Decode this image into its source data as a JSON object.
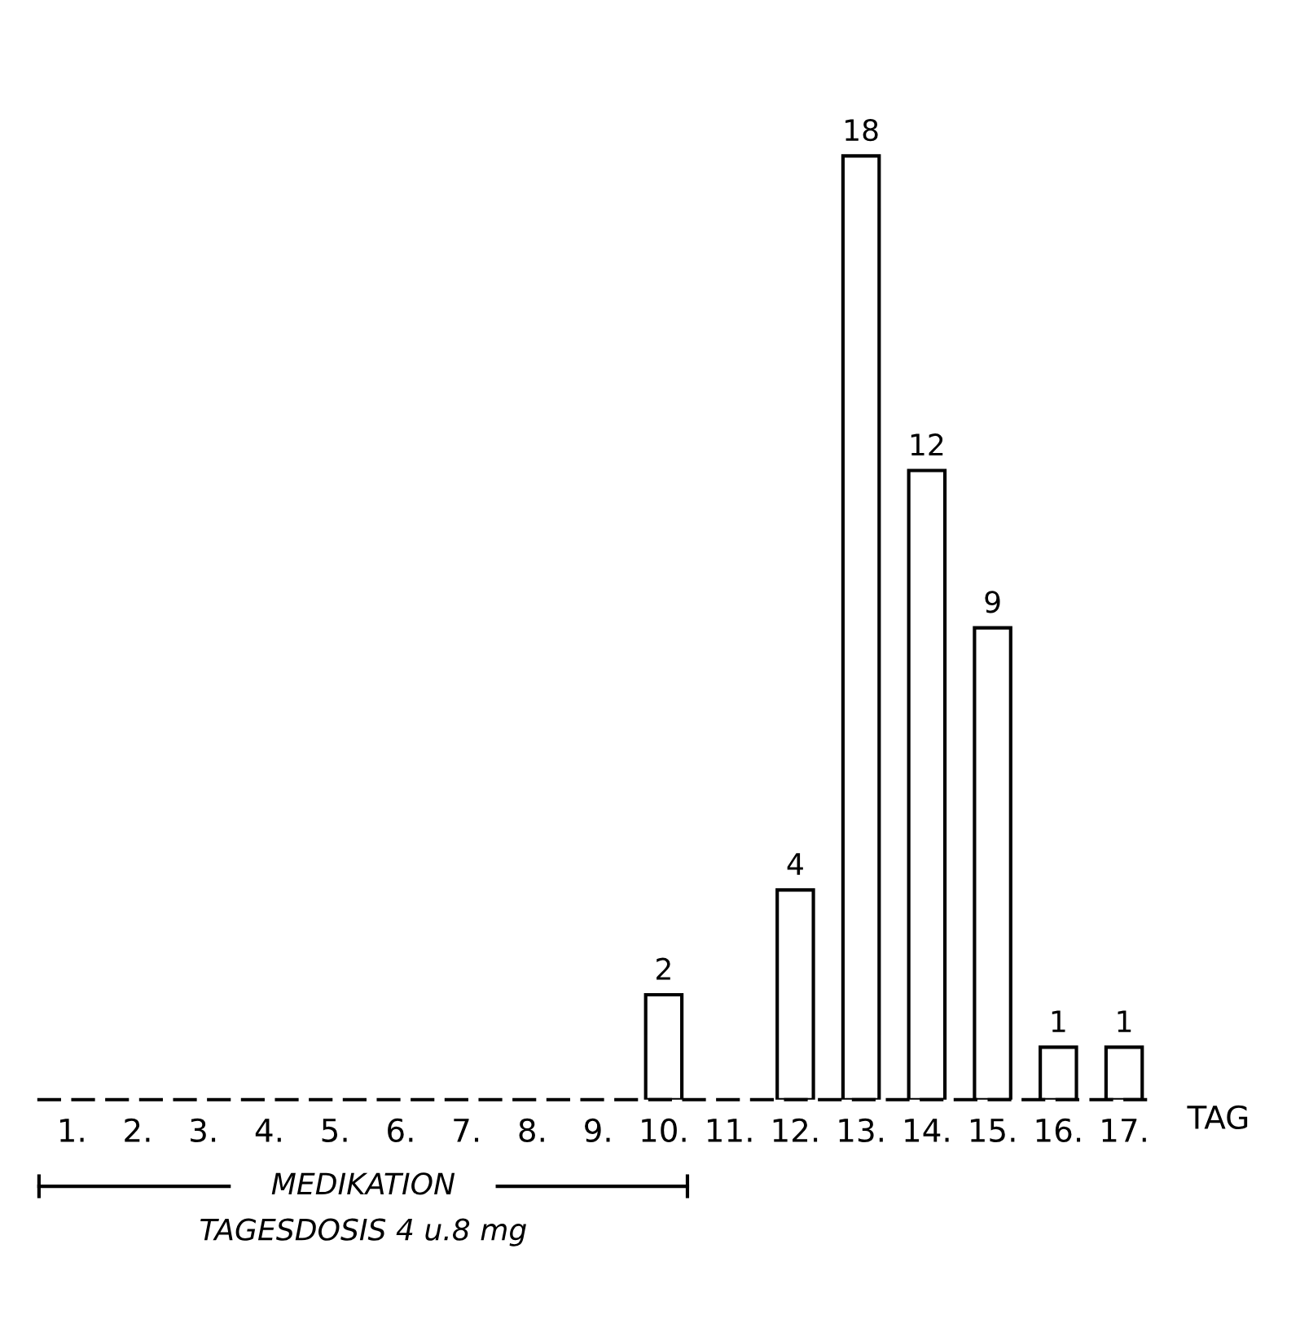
{
  "chart_data": {
    "type": "bar",
    "xlabel": "TAG",
    "categories": [
      "1.",
      "2.",
      "3.",
      "4.",
      "5.",
      "6.",
      "7.",
      "8.",
      "9.",
      "10.",
      "11.",
      "12.",
      "13.",
      "14.",
      "15.",
      "16.",
      "17."
    ],
    "values": [
      0,
      0,
      0,
      0,
      0,
      0,
      0,
      0,
      0,
      2,
      0,
      4,
      18,
      12,
      9,
      1,
      1
    ],
    "value_labels": [
      null,
      null,
      null,
      null,
      null,
      null,
      null,
      null,
      null,
      "2",
      null,
      "4",
      "18",
      "12",
      "9",
      "1",
      "1"
    ],
    "color": "#ffffff",
    "annotations": [
      "MEDIKATION",
      "TAGESDOSIS 4 u.8 mg"
    ],
    "grid": false,
    "legend": false
  }
}
